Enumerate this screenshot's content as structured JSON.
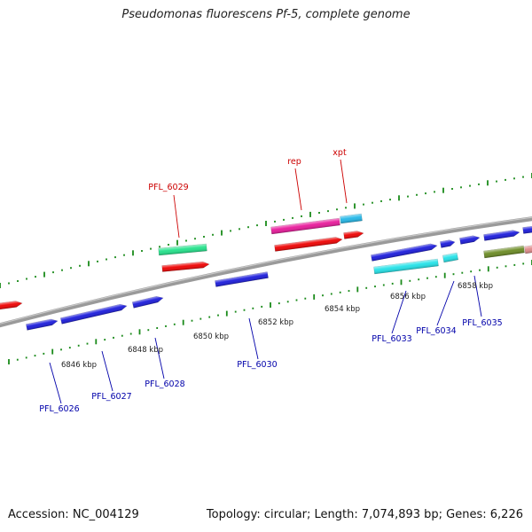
{
  "title": "Pseudomonas fluorescens Pf-5, complete genome",
  "footer": {
    "accession": "Accession: NC_004129",
    "summary": "Topology: circular; Length: 7,074,893 bp; Genes: 6,226"
  },
  "colors": {
    "backbone": "#7f7f7f",
    "forward_label": "#cc0000",
    "reverse_label": "#0000aa",
    "tick_dots": "#1a8a1a"
  },
  "scale_labels": [
    "6846 kbp",
    "6848 kbp",
    "6850 kbp",
    "6852 kbp",
    "6854 kbp",
    "6856 kbp",
    "6858 kbp"
  ],
  "features": [
    {
      "name": "feature-red-left",
      "color": "#ee0000",
      "strand": "reverse-cds"
    },
    {
      "name": "feature-pfl-6026",
      "color": "#1a1adb"
    },
    {
      "name": "feature-pfl-6027",
      "color": "#1a1adb"
    },
    {
      "name": "feature-pfl-6028",
      "color": "#1a1adb"
    },
    {
      "name": "feature-pfl-6029-gene",
      "color": "#22e28a"
    },
    {
      "name": "feature-pfl-6029-cds",
      "color": "#ee0000"
    },
    {
      "name": "feature-pfl-6030",
      "color": "#1a1adb"
    },
    {
      "name": "feature-rep-gene",
      "color": "#e8189a"
    },
    {
      "name": "feature-rep-cds",
      "color": "#ee0000"
    },
    {
      "name": "feature-xpt-gene",
      "color": "#22b7e8"
    },
    {
      "name": "feature-xpt-cds",
      "color": "#ee0000"
    },
    {
      "name": "feature-pfl-6033",
      "color": "#1a1adb"
    },
    {
      "name": "feature-pfl-6033-gene",
      "color": "#22e2e8"
    },
    {
      "name": "feature-pfl-6034",
      "color": "#1a1adb"
    },
    {
      "name": "feature-pfl-6034-gene",
      "color": "#22e2e8"
    },
    {
      "name": "feature-pfl-6035",
      "color": "#1a1adb"
    },
    {
      "name": "feature-olive",
      "color": "#6a8a22"
    },
    {
      "name": "feature-blue-right",
      "color": "#1a1adb"
    },
    {
      "name": "feature-pink-right",
      "color": "#e08a8a"
    },
    {
      "name": "feature-blue-edge",
      "color": "#1a1adb"
    }
  ],
  "forward_labels": [
    "PFL_6029",
    "rep",
    "xpt"
  ],
  "reverse_labels": [
    "PFL_6026",
    "PFL_6027",
    "PFL_6028",
    "PFL_6030",
    "PFL_6033",
    "PFL_6034",
    "PFL_6035"
  ]
}
